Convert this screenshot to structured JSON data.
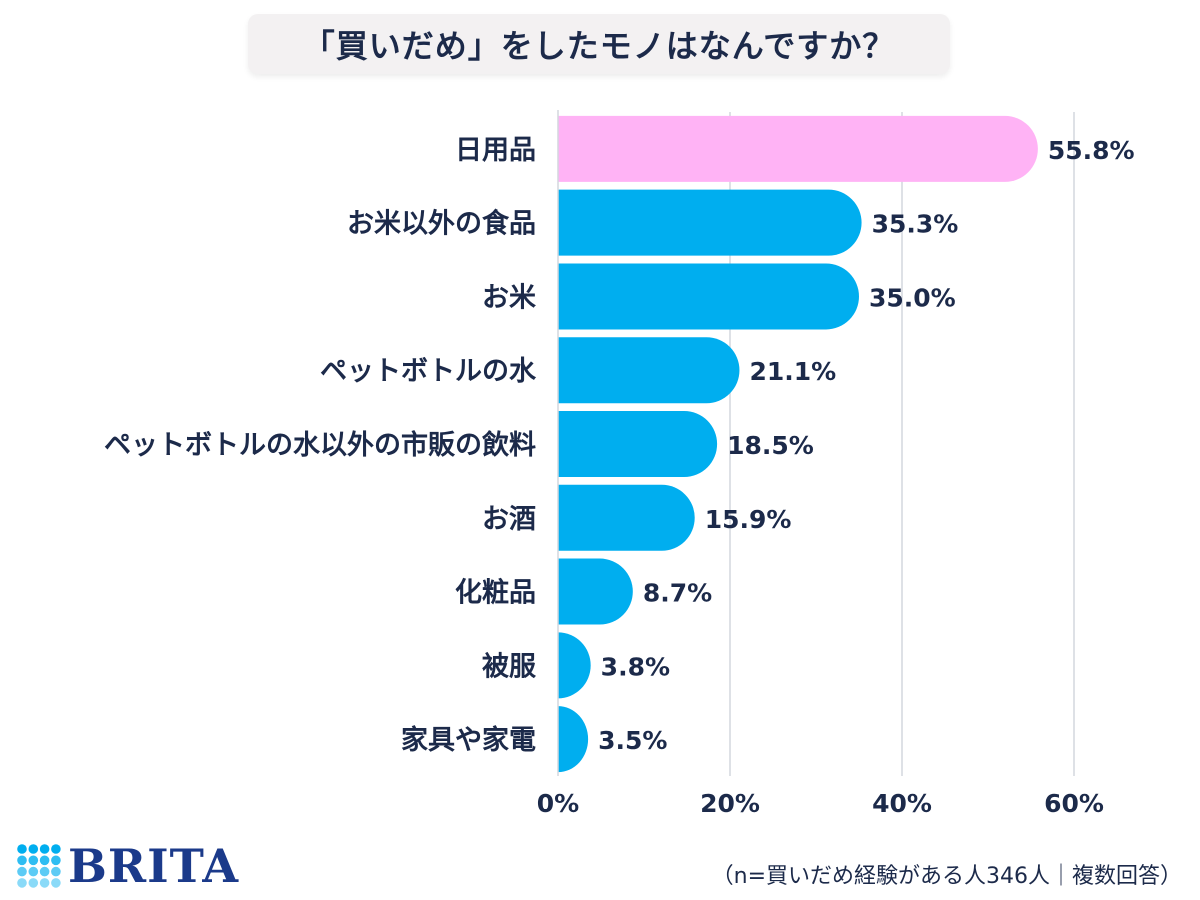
{
  "title": "「買いだめ」をしたモノはなんですか？",
  "chart_data": {
    "type": "bar",
    "orientation": "horizontal",
    "categories": [
      "日用品",
      "お米以外の食品",
      "お米",
      "ペットボトルの水",
      "ペットボトルの水以外の市販の飲料",
      "お酒",
      "化粧品",
      "被服",
      "家具や家電"
    ],
    "values": [
      55.8,
      35.3,
      35.0,
      21.1,
      18.5,
      15.9,
      8.7,
      3.8,
      3.5
    ],
    "value_labels": [
      "55.8%",
      "35.3%",
      "35.0%",
      "21.1%",
      "18.5%",
      "15.9%",
      "8.7%",
      "3.8%",
      "3.5%"
    ],
    "xlim": [
      0,
      60
    ],
    "xticks": [
      0,
      20,
      40,
      60
    ],
    "xtick_labels": [
      "0%",
      "20%",
      "40%",
      "60%"
    ],
    "grid": true,
    "colors": {
      "highlight": "#ffb3f5",
      "bar": "#00aeef",
      "grid": "#d3d7de",
      "text": "#1c2a4a"
    },
    "highlight_index": 0
  },
  "logo": {
    "text": "BRITA",
    "color": "#1b3a8a",
    "dot_color": "#00aeef"
  },
  "footnote": "（n=買いだめ経験がある人346人｜複数回答）"
}
